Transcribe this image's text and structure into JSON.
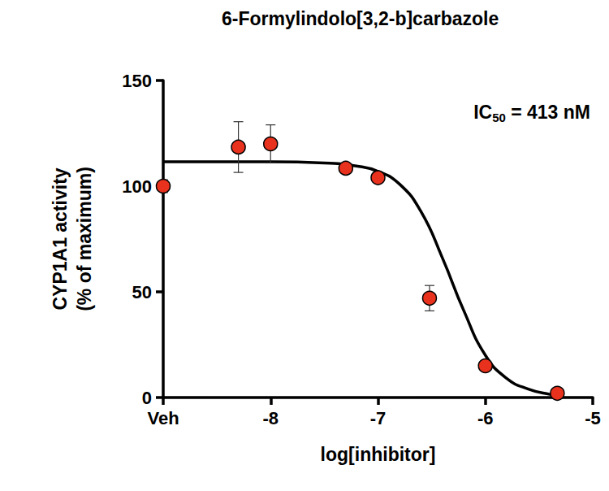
{
  "chart_data": {
    "type": "scatter",
    "title": "6-Formylindolo[3,2-b]carbazole",
    "x_label": "log[inhibitor]",
    "y_label": "CYP1A1 activity\n(% of maximum)",
    "annotation": "IC50 = 413 nM",
    "xlim": [
      -9,
      -5
    ],
    "xticks": [
      {
        "value": -9,
        "label": "Veh"
      },
      -8,
      -7,
      -6,
      -5
    ],
    "ylim": [
      0,
      150
    ],
    "yticks": [
      0,
      50,
      100,
      150
    ],
    "grid": false,
    "series": [
      {
        "type": "scatter",
        "color": "#e8321e",
        "marker": "circle",
        "x": [
          -9,
          -8.3,
          -8,
          -7.3,
          -7,
          -6.52,
          -6,
          -5.33
        ],
        "values": [
          100,
          118.5,
          120,
          108.5,
          104,
          47,
          15,
          2
        ],
        "error": [
          3,
          12,
          9,
          2,
          2,
          6,
          2,
          1
        ]
      },
      {
        "type": "line",
        "color": "#000000",
        "line_style": "solid",
        "x": [
          -9,
          -8,
          -7.5,
          -7.2,
          -7,
          -6.8,
          -6.6,
          -6.4,
          -6.2,
          -6,
          -5.8,
          -5.6,
          -5.4,
          -5.3
        ],
        "values": [
          111.5,
          111.5,
          111,
          109.5,
          107,
          101,
          88,
          66,
          41,
          20,
          9,
          4,
          1.5,
          1
        ]
      }
    ]
  }
}
